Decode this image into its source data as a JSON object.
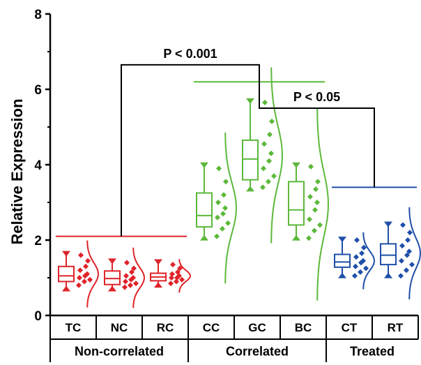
{
  "chart_data": {
    "type": "box",
    "title": "",
    "xlabel": "",
    "ylabel": "Relative Expression",
    "ylim": [
      0,
      8
    ],
    "yticks": [
      0,
      2,
      4,
      6,
      8
    ],
    "grid": false,
    "categories": [
      "TC",
      "NC",
      "RC",
      "CC",
      "GC",
      "BC",
      "CT",
      "RT"
    ],
    "groups": [
      {
        "name": "Non-correlated",
        "categories": [
          "TC",
          "NC",
          "RC"
        ],
        "color": "#e0232a"
      },
      {
        "name": "Correlated",
        "categories": [
          "CC",
          "GC",
          "BC"
        ],
        "color": "#5cb83a"
      },
      {
        "name": "Treated",
        "categories": [
          "CT",
          "RT"
        ],
        "color": "#1f4fa8"
      }
    ],
    "boxes": [
      {
        "category": "TC",
        "min": 0.75,
        "q1": 0.9,
        "median": 1.05,
        "q3": 1.3,
        "max": 1.6,
        "mean": 1.1,
        "points": [
          0.8,
          0.9,
          0.95,
          1.0,
          1.05,
          1.1,
          1.2,
          1.3,
          1.45,
          1.6
        ]
      },
      {
        "category": "NC",
        "min": 0.75,
        "q1": 0.82,
        "median": 0.98,
        "q3": 1.18,
        "max": 1.4,
        "mean": 1.0,
        "points": [
          0.75,
          0.8,
          0.85,
          0.9,
          0.95,
          1.0,
          1.05,
          1.15,
          1.25,
          1.4
        ]
      },
      {
        "category": "RC",
        "min": 0.85,
        "q1": 0.92,
        "median": 1.02,
        "q3": 1.12,
        "max": 1.38,
        "mean": 1.05,
        "points": [
          0.85,
          0.9,
          0.95,
          1.0,
          1.0,
          1.05,
          1.1,
          1.15,
          1.25,
          1.35
        ]
      },
      {
        "category": "CC",
        "min": 2.1,
        "q1": 2.35,
        "median": 2.65,
        "q3": 3.25,
        "max": 3.95,
        "mean": 2.85,
        "points": [
          2.1,
          2.3,
          2.45,
          2.6,
          2.7,
          2.85,
          3.0,
          3.2,
          3.55,
          3.9
        ]
      },
      {
        "category": "GC",
        "min": 3.4,
        "q1": 3.6,
        "median": 4.15,
        "q3": 4.65,
        "max": 5.65,
        "mean": 4.25,
        "points": [
          3.4,
          3.55,
          3.7,
          3.9,
          4.1,
          4.3,
          4.55,
          4.8,
          5.15,
          5.65
        ]
      },
      {
        "category": "BC",
        "min": 2.1,
        "q1": 2.4,
        "median": 2.8,
        "q3": 3.55,
        "max": 3.95,
        "mean": 2.95,
        "points": [
          2.05,
          2.25,
          2.4,
          2.55,
          2.8,
          3.0,
          3.15,
          3.35,
          3.55,
          3.95
        ]
      },
      {
        "category": "CT",
        "min": 1.1,
        "q1": 1.28,
        "median": 1.42,
        "q3": 1.62,
        "max": 1.98,
        "mean": 1.45,
        "points": [
          1.05,
          1.15,
          1.25,
          1.3,
          1.4,
          1.45,
          1.55,
          1.65,
          1.8,
          2.0
        ]
      },
      {
        "category": "RT",
        "min": 1.1,
        "q1": 1.35,
        "median": 1.6,
        "q3": 1.9,
        "max": 2.38,
        "mean": 1.65,
        "points": [
          1.05,
          1.2,
          1.35,
          1.45,
          1.6,
          1.7,
          1.85,
          2.0,
          2.2,
          2.4
        ]
      }
    ],
    "group_mean_lines": [
      {
        "group": "Non-correlated",
        "y": 2.1
      },
      {
        "group": "Correlated",
        "y": 6.2
      },
      {
        "group": "Treated",
        "y": 3.4
      }
    ],
    "annotations": [
      {
        "text": "P < 0.001",
        "between": [
          "Non-correlated",
          "Correlated"
        ],
        "y": 6.65
      },
      {
        "text": "P < 0.05",
        "between": [
          "Correlated",
          "Treated"
        ],
        "y": 5.5
      }
    ]
  }
}
